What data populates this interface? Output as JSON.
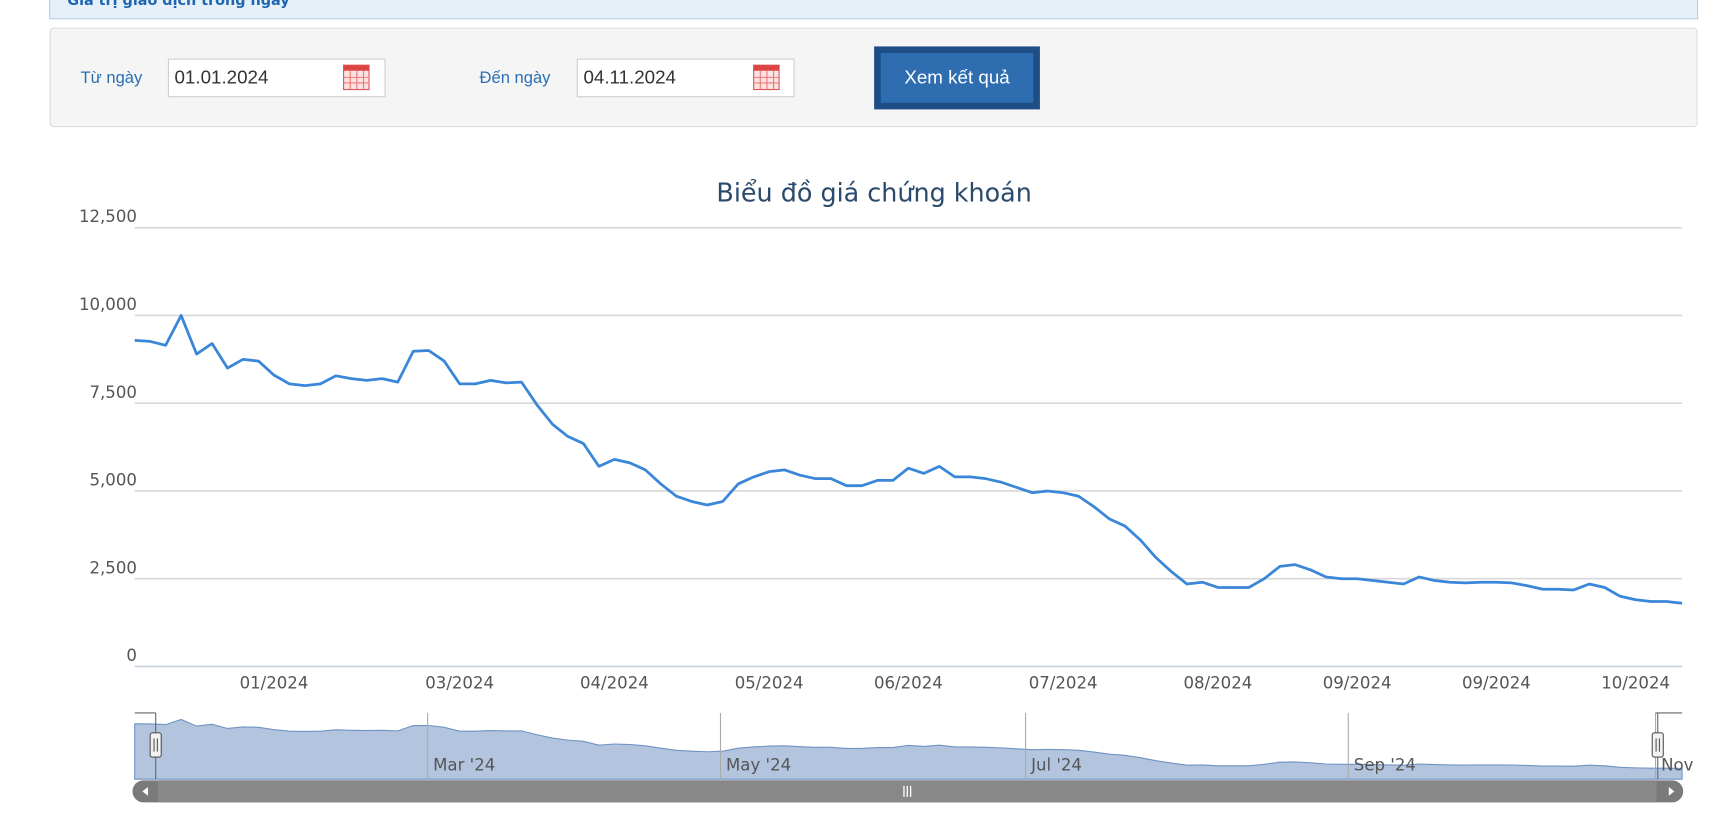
{
  "top_bar": {
    "title": "Giá trị giao dịch trong ngày"
  },
  "filter": {
    "from_label": "Từ ngày",
    "from_value": "01.01.2024",
    "to_label": "Đến ngày",
    "to_value": "04.11.2024",
    "button": "Xem kết quả"
  },
  "chart_data": {
    "type": "line",
    "title": "Biểu đồ giá chứng khoán",
    "categories": [
      null,
      null,
      null,
      null,
      null,
      null,
      null,
      null,
      null,
      "01/2024",
      null,
      null,
      null,
      null,
      null,
      null,
      null,
      null,
      null,
      null,
      null,
      "03/2024",
      null,
      null,
      null,
      null,
      null,
      null,
      null,
      null,
      null,
      "04/2024",
      null,
      null,
      null,
      null,
      null,
      null,
      null,
      null,
      null,
      "05/2024",
      null,
      null,
      null,
      null,
      null,
      null,
      null,
      null,
      "06/2024",
      null,
      null,
      null,
      null,
      null,
      null,
      null,
      null,
      null,
      "07/2024",
      null,
      null,
      null,
      null,
      null,
      null,
      null,
      null,
      null,
      "08/2024",
      null,
      null,
      null,
      null,
      null,
      null,
      null,
      null,
      "09/2024",
      null,
      null,
      null,
      null,
      null,
      null,
      null,
      null,
      "09/2024",
      null,
      null,
      null,
      null,
      null,
      null,
      null,
      null,
      "10/2024",
      null,
      null,
      null
    ],
    "series": [
      {
        "color": "#3a86d8",
        "values": [
          9290,
          9260,
          9150,
          10000,
          8900,
          9200,
          8500,
          8750,
          8700,
          8300,
          8050,
          8000,
          8050,
          8280,
          8200,
          8150,
          8200,
          8100,
          8980,
          9000,
          8700,
          8050,
          8050,
          8150,
          8080,
          8100,
          7450,
          6900,
          6550,
          6350,
          5700,
          5900,
          5800,
          5600,
          5200,
          4850,
          4700,
          4600,
          4700,
          5200,
          5400,
          5550,
          5600,
          5450,
          5350,
          5350,
          5150,
          5150,
          5300,
          5300,
          5650,
          5500,
          5700,
          5400,
          5400,
          5350,
          5250,
          5100,
          4950,
          5000,
          4950,
          4850,
          4550,
          4200,
          4000,
          3600,
          3100,
          2700,
          2350,
          2400,
          2250,
          2250,
          2250,
          2500,
          2850,
          2900,
          2750,
          2550,
          2500,
          2500,
          2450,
          2400,
          2350,
          2550,
          2450,
          2400,
          2380,
          2400,
          2400,
          2380,
          2300,
          2200,
          2200,
          2180,
          2350,
          2250,
          2000,
          1900,
          1850,
          1850,
          1800
        ]
      }
    ],
    "ylim": [
      0,
      12500
    ],
    "yticks": [
      0,
      {
        "value": 2500,
        "label": "2,500"
      },
      {
        "value": 5000,
        "label": "5,000"
      },
      {
        "value": 7500,
        "label": "7,500"
      },
      {
        "value": 10000,
        "label": "10,000"
      },
      {
        "value": 12500,
        "label": "12,500"
      }
    ],
    "grid": true,
    "navigator_labels": [
      "Mar '24",
      "May '24",
      "Jul '24",
      "Sep '24",
      "Nov"
    ]
  }
}
